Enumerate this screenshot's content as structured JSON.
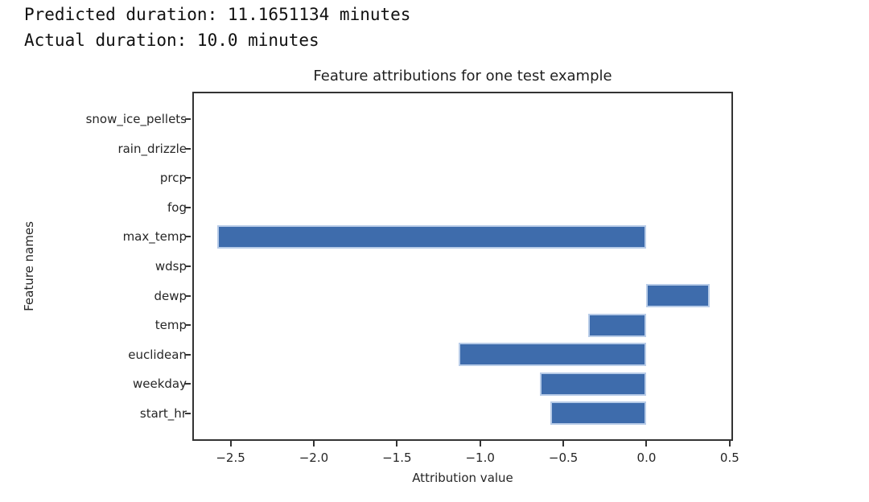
{
  "header": {
    "line1": "Predicted duration: 11.1651134 minutes",
    "line2": "Actual duration: 10.0 minutes"
  },
  "chart_data": {
    "type": "bar",
    "orientation": "horizontal",
    "title": "Feature attributions for one test example",
    "xlabel": "Attribution value",
    "ylabel": "Feature names",
    "categories": [
      "snow_ice_pellets",
      "rain_drizzle",
      "prcp",
      "fog",
      "max_temp",
      "wdsp",
      "dewp",
      "temp",
      "euclidean",
      "weekday",
      "start_hr"
    ],
    "values": [
      0,
      0,
      0,
      0,
      -2.58,
      0,
      0.38,
      -0.35,
      -1.13,
      -0.64,
      -0.58
    ],
    "xlim": [
      -2.73,
      0.52
    ],
    "x_ticks": [
      -2.5,
      -2.0,
      -1.5,
      -1.0,
      -0.5,
      0.0,
      0.5
    ],
    "x_tick_labels": [
      "−2.5",
      "−2.0",
      "−1.5",
      "−1.0",
      "−0.5",
      "0.0",
      "0.5"
    ],
    "grid": false,
    "legend": null,
    "bar_color": "#3e6cac",
    "bar_edge_color": "#b8cce8"
  }
}
